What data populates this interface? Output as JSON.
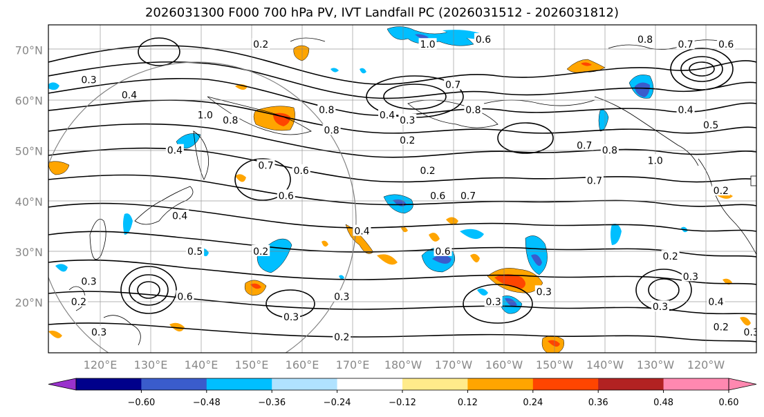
{
  "title": "2026031300 F000 700 hPa PV, IVT Landfall PC (2026031512 - 2026031812)",
  "map": {
    "lat_labels": [
      "70°N",
      "60°N",
      "50°N",
      "40°N",
      "30°N",
      "20°N"
    ],
    "lat_values": [
      70,
      60,
      50,
      40,
      30,
      20
    ],
    "lon_labels": [
      "120°E",
      "130°E",
      "140°E",
      "150°E",
      "160°E",
      "170°E",
      "180°W",
      "170°W",
      "160°W",
      "150°W",
      "140°W",
      "130°W",
      "120°W"
    ],
    "lat_range": [
      10,
      75
    ],
    "contour_labels": [
      {
        "text": "0.2",
        "lon": 152,
        "lat": 71
      },
      {
        "text": "1.0",
        "lon": 185,
        "lat": 71
      },
      {
        "text": "0.6",
        "lon": 196,
        "lat": 72
      },
      {
        "text": "0.8",
        "lon": 228,
        "lat": 72
      },
      {
        "text": "0.7",
        "lon": 236,
        "lat": 71
      },
      {
        "text": "0.6",
        "lon": 244,
        "lat": 71
      },
      {
        "text": "0.3",
        "lon": 118,
        "lat": 64
      },
      {
        "text": "0.4",
        "lon": 126,
        "lat": 61
      },
      {
        "text": "1.0",
        "lon": 141,
        "lat": 57
      },
      {
        "text": "0.8",
        "lon": 146,
        "lat": 56
      },
      {
        "text": "0.8",
        "lon": 165,
        "lat": 58
      },
      {
        "text": "0.8",
        "lon": 166,
        "lat": 54
      },
      {
        "text": "0.4",
        "lon": 177,
        "lat": 57
      },
      {
        "text": "0.3",
        "lon": 181,
        "lat": 56
      },
      {
        "text": "0.7",
        "lon": 190,
        "lat": 63
      },
      {
        "text": "0.8",
        "lon": 194,
        "lat": 58
      },
      {
        "text": "0.4",
        "lon": 236,
        "lat": 58
      },
      {
        "text": "0.5",
        "lon": 241,
        "lat": 55
      },
      {
        "text": "0.4",
        "lon": 135,
        "lat": 50
      },
      {
        "text": "0.7",
        "lon": 153,
        "lat": 47
      },
      {
        "text": "0.6",
        "lon": 160,
        "lat": 46
      },
      {
        "text": "0.7",
        "lon": 216,
        "lat": 51
      },
      {
        "text": "0.8",
        "lon": 221,
        "lat": 50
      },
      {
        "text": "1.0",
        "lon": 230,
        "lat": 48
      },
      {
        "text": "0.2",
        "lon": 181,
        "lat": 52
      },
      {
        "text": "0.2",
        "lon": 185,
        "lat": 46
      },
      {
        "text": "0.7",
        "lon": 218,
        "lat": 44
      },
      {
        "text": "0.2",
        "lon": 243,
        "lat": 42
      },
      {
        "text": "0.6",
        "lon": 157,
        "lat": 41
      },
      {
        "text": "0.6",
        "lon": 187,
        "lat": 41
      },
      {
        "text": "0.7",
        "lon": 193,
        "lat": 41
      },
      {
        "text": "0.4",
        "lon": 136,
        "lat": 37
      },
      {
        "text": "0.4",
        "lon": 172,
        "lat": 34
      },
      {
        "text": "0.2",
        "lon": 152,
        "lat": 30
      },
      {
        "text": "0.5",
        "lon": 139,
        "lat": 30
      },
      {
        "text": "0.6",
        "lon": 188,
        "lat": 30
      },
      {
        "text": "0.2",
        "lon": 233,
        "lat": 29
      },
      {
        "text": "0.3",
        "lon": 118,
        "lat": 24
      },
      {
        "text": "0.6",
        "lon": 137,
        "lat": 21
      },
      {
        "text": "0.3",
        "lon": 168,
        "lat": 21
      },
      {
        "text": "0.3",
        "lon": 208,
        "lat": 22
      },
      {
        "text": "0.3",
        "lon": 198,
        "lat": 20
      },
      {
        "text": "0.3",
        "lon": 231,
        "lat": 19
      },
      {
        "text": "0.3",
        "lon": 237,
        "lat": 25
      },
      {
        "text": "0.4",
        "lon": 242,
        "lat": 20
      },
      {
        "text": "0.3",
        "lon": 158,
        "lat": 17
      },
      {
        "text": "0.3",
        "lon": 120,
        "lat": 14
      },
      {
        "text": "0.2",
        "lon": 168,
        "lat": 13
      },
      {
        "text": "0.2",
        "lon": 243,
        "lat": 15
      },
      {
        "text": "0.3",
        "lon": 249,
        "lat": 14
      },
      {
        "text": "0.2",
        "lon": 116,
        "lat": 20
      }
    ]
  },
  "colorbar": {
    "tick_labels": [
      "−0.60",
      "−0.48",
      "−0.36",
      "−0.24",
      "−0.12",
      "0.12",
      "0.24",
      "0.36",
      "0.48",
      "0.60"
    ],
    "colors": [
      "#9932cc",
      "#00008b",
      "#3a5ccc",
      "#00bfff",
      "#b0e2ff",
      "#ffffff",
      "#ffeb8a",
      "#ffa500",
      "#ff4500",
      "#b22222",
      "#ff88b0",
      "#ff88b0"
    ],
    "bins": [
      "<-0.60",
      "-0.60..-0.48",
      "-0.48..-0.36",
      "-0.36..-0.24",
      "-0.24..-0.12",
      "-0.12..0.12",
      "0.12..0.24",
      "0.24..0.36",
      "0.36..0.48",
      "0.48..0.60",
      "0.60..0.72",
      ">0.72"
    ]
  }
}
